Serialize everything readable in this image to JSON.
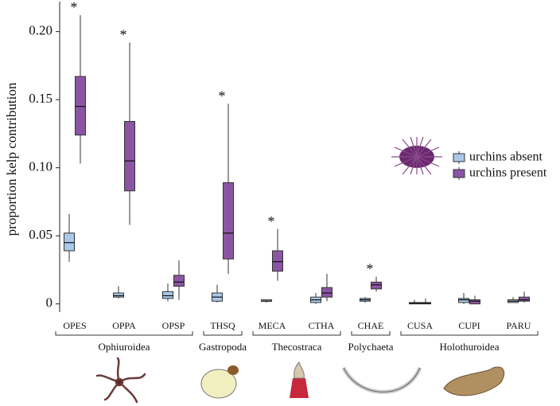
{
  "chart_data": {
    "type": "box",
    "y_label": "proportion kelp contribution",
    "categories": [
      "OPES",
      "OPPA",
      "OPSP",
      "THSQ",
      "MECA",
      "CTHA",
      "CHAE",
      "CUSA",
      "CUPI",
      "PARU"
    ],
    "series": [
      {
        "name": "urchins absent",
        "color": "#a9c9e8",
        "values": [
          {
            "low": 0.031,
            "q1": 0.039,
            "median": 0.045,
            "q3": 0.052,
            "high": 0.066
          },
          {
            "low": 0.004,
            "q1": 0.005,
            "median": 0.006,
            "q3": 0.008,
            "high": 0.013
          },
          {
            "low": 0.002,
            "q1": 0.004,
            "median": 0.006,
            "q3": 0.009,
            "high": 0.015
          },
          {
            "low": 0.001,
            "q1": 0.002,
            "median": 0.005,
            "q3": 0.008,
            "high": 0.014
          },
          {
            "low": 0.001,
            "q1": 0.002,
            "median": 0.002,
            "q3": 0.003,
            "high": 0.003
          },
          {
            "low": 0.0,
            "q1": 0.001,
            "median": 0.003,
            "q3": 0.005,
            "high": 0.008
          },
          {
            "low": 0.001,
            "q1": 0.002,
            "median": 0.003,
            "q3": 0.004,
            "high": 0.005
          },
          {
            "low": 0.0,
            "q1": 0.0,
            "median": 0.0005,
            "q3": 0.001,
            "high": 0.003
          },
          {
            "low": 0.0,
            "q1": 0.001,
            "median": 0.003,
            "q3": 0.004,
            "high": 0.008
          },
          {
            "low": 0.001,
            "q1": 0.001,
            "median": 0.002,
            "q3": 0.003,
            "high": 0.005
          }
        ]
      },
      {
        "name": "urchins present",
        "color": "#8c55a3",
        "values": [
          {
            "low": 0.103,
            "q1": 0.124,
            "median": 0.145,
            "q3": 0.167,
            "high": 0.212
          },
          {
            "low": 0.058,
            "q1": 0.083,
            "median": 0.105,
            "q3": 0.134,
            "high": 0.192
          },
          {
            "low": 0.003,
            "q1": 0.013,
            "median": 0.016,
            "q3": 0.021,
            "high": 0.032
          },
          {
            "low": 0.022,
            "q1": 0.033,
            "median": 0.052,
            "q3": 0.089,
            "high": 0.147
          },
          {
            "low": 0.017,
            "q1": 0.024,
            "median": 0.031,
            "q3": 0.039,
            "high": 0.055
          },
          {
            "low": 0.002,
            "q1": 0.005,
            "median": 0.008,
            "q3": 0.012,
            "high": 0.022
          },
          {
            "low": 0.009,
            "q1": 0.011,
            "median": 0.014,
            "q3": 0.016,
            "high": 0.02
          },
          {
            "low": 0.0,
            "q1": 0.0,
            "median": 0.0005,
            "q3": 0.001,
            "high": 0.004
          },
          {
            "low": 0.0,
            "q1": 0.0,
            "median": 0.002,
            "q3": 0.003,
            "high": 0.006
          },
          {
            "low": 0.001,
            "q1": 0.002,
            "median": 0.003,
            "q3": 0.005,
            "high": 0.009
          }
        ]
      }
    ],
    "annotations": [
      {
        "text": "*",
        "category": "OPES"
      },
      {
        "text": "*",
        "category": "OPPA"
      },
      {
        "text": "*",
        "category": "THSQ"
      },
      {
        "text": "*",
        "category": "MECA"
      },
      {
        "text": "*",
        "category": "CHAE"
      }
    ],
    "groups": [
      {
        "name": "Ophiuroidea",
        "members": [
          "OPES",
          "OPPA",
          "OPSP"
        ]
      },
      {
        "name": "Gastropoda",
        "members": [
          "THSQ"
        ]
      },
      {
        "name": "Thecostraca",
        "members": [
          "MECA",
          "CTHA"
        ]
      },
      {
        "name": "Polychaeta",
        "members": [
          "CHAE"
        ]
      },
      {
        "name": "Holothuroidea",
        "members": [
          "CUSA",
          "CUPI",
          "PARU"
        ]
      }
    ],
    "ylim": [
      -0.006,
      0.222
    ],
    "yticks": [
      0,
      0.05,
      {
        "value": 0.1,
        "label": "0.10"
      },
      0.15,
      {
        "value": 0.2,
        "label": "0.20"
      }
    ],
    "legend": "right"
  }
}
